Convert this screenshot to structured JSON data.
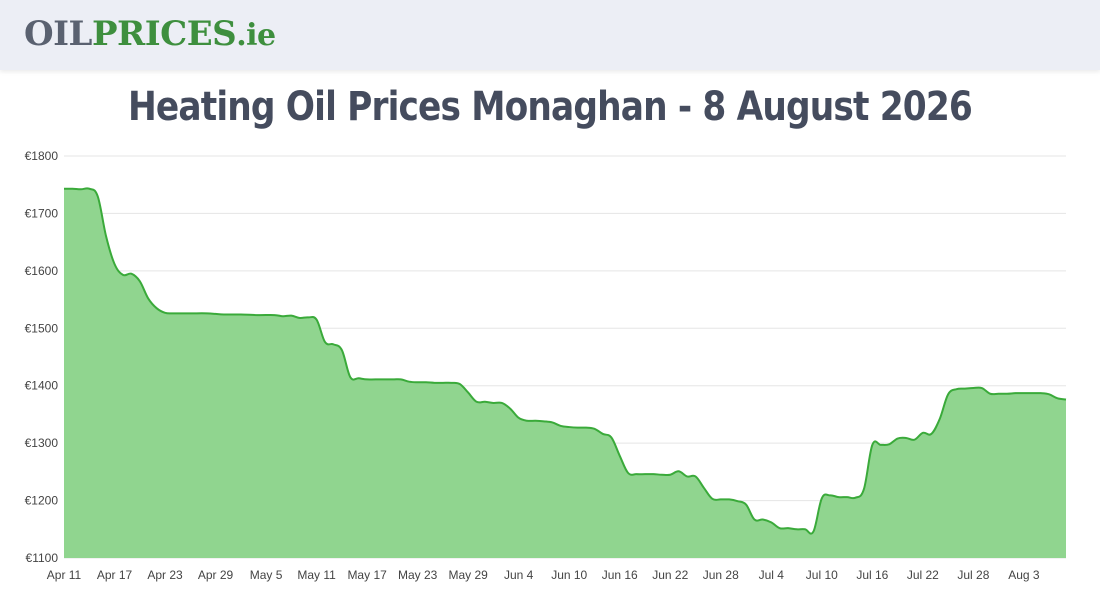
{
  "header": {
    "logo_oil": "OIL",
    "logo_prices": "PRICES",
    "logo_tld": ".ie"
  },
  "page_title": "Heating Oil Prices Monaghan - 8 August 2026",
  "colors": {
    "area_fill": "#90d58f",
    "line": "#3aaa3a",
    "grid": "#e5e5e5",
    "topbar": "#eceef5",
    "title": "#454c5e"
  },
  "chart_data": {
    "type": "area",
    "title": "",
    "xlabel": "",
    "ylabel": "",
    "ylim": [
      1100,
      1800
    ],
    "y_ticks": [
      "€1100",
      "€1200",
      "€1300",
      "€1400",
      "€1500",
      "€1600",
      "€1700",
      "€1800"
    ],
    "y_tick_values": [
      1100,
      1200,
      1300,
      1400,
      1500,
      1600,
      1700,
      1800
    ],
    "x_ticks": [
      "Apr 11",
      "Apr 17",
      "Apr 23",
      "Apr 29",
      "May 5",
      "May 11",
      "May 17",
      "May 23",
      "May 29",
      "Jun 4",
      "Jun 10",
      "Jun 16",
      "Jun 22",
      "Jun 28",
      "Jul 4",
      "Jul 10",
      "Jul 16",
      "Jul 22",
      "Jul 28",
      "Aug 3"
    ],
    "x_start": "2026-04-11",
    "x_end": "2026-08-08",
    "grid": true,
    "legend": "none",
    "series": [
      {
        "dates": [
          "2026-04-11",
          "2026-04-12",
          "2026-04-13",
          "2026-04-14",
          "2026-04-15",
          "2026-04-16",
          "2026-04-17",
          "2026-04-18",
          "2026-04-19",
          "2026-04-20",
          "2026-04-21",
          "2026-04-22",
          "2026-04-23",
          "2026-04-24",
          "2026-04-26",
          "2026-04-28",
          "2026-04-29",
          "2026-04-30",
          "2026-05-02",
          "2026-05-04",
          "2026-05-06",
          "2026-05-07",
          "2026-05-08",
          "2026-05-09",
          "2026-05-10",
          "2026-05-11",
          "2026-05-12",
          "2026-05-13",
          "2026-05-14",
          "2026-05-15",
          "2026-05-16",
          "2026-05-17",
          "2026-05-18",
          "2026-05-20",
          "2026-05-21",
          "2026-05-22",
          "2026-05-23",
          "2026-05-24",
          "2026-05-25",
          "2026-05-26",
          "2026-05-27",
          "2026-05-28",
          "2026-05-29",
          "2026-05-30",
          "2026-05-31",
          "2026-06-01",
          "2026-06-02",
          "2026-06-03",
          "2026-06-04",
          "2026-06-05",
          "2026-06-06",
          "2026-06-07",
          "2026-06-08",
          "2026-06-09",
          "2026-06-10",
          "2026-06-11",
          "2026-06-12",
          "2026-06-13",
          "2026-06-14",
          "2026-06-15",
          "2026-06-16",
          "2026-06-17",
          "2026-06-18",
          "2026-06-19",
          "2026-06-20",
          "2026-06-21",
          "2026-06-22",
          "2026-06-23",
          "2026-06-24",
          "2026-06-25",
          "2026-06-26",
          "2026-06-27",
          "2026-06-28",
          "2026-06-29",
          "2026-06-30",
          "2026-07-01",
          "2026-07-02",
          "2026-07-03",
          "2026-07-04",
          "2026-07-05",
          "2026-07-06",
          "2026-07-07",
          "2026-07-08",
          "2026-07-09",
          "2026-07-10",
          "2026-07-11",
          "2026-07-12",
          "2026-07-13",
          "2026-07-14",
          "2026-07-15",
          "2026-07-16",
          "2026-07-17",
          "2026-07-18",
          "2026-07-19",
          "2026-07-20",
          "2026-07-21",
          "2026-07-22",
          "2026-07-23",
          "2026-07-24",
          "2026-07-25",
          "2026-07-26",
          "2026-07-27",
          "2026-07-28",
          "2026-07-29",
          "2026-07-30",
          "2026-07-31",
          "2026-08-01",
          "2026-08-02",
          "2026-08-03",
          "2026-08-04",
          "2026-08-05",
          "2026-08-06",
          "2026-08-07",
          "2026-08-08"
        ],
        "values": [
          1743,
          1743,
          1742,
          1743,
          1730,
          1660,
          1612,
          1593,
          1595,
          1582,
          1552,
          1535,
          1527,
          1526,
          1526,
          1526,
          1525,
          1524,
          1524,
          1523,
          1523,
          1521,
          1522,
          1518,
          1519,
          1515,
          1476,
          1472,
          1462,
          1415,
          1413,
          1411,
          1411,
          1411,
          1411,
          1407,
          1406,
          1406,
          1405,
          1405,
          1405,
          1403,
          1388,
          1372,
          1372,
          1370,
          1370,
          1360,
          1344,
          1339,
          1339,
          1338,
          1336,
          1330,
          1328,
          1327,
          1327,
          1325,
          1316,
          1310,
          1278,
          1248,
          1246,
          1246,
          1246,
          1245,
          1245,
          1251,
          1242,
          1242,
          1222,
          1203,
          1202,
          1202,
          1199,
          1193,
          1167,
          1167,
          1162,
          1152,
          1152,
          1150,
          1150,
          1146,
          1204,
          1209,
          1206,
          1206,
          1205,
          1220,
          1297,
          1297,
          1298,
          1308,
          1309,
          1306,
          1318,
          1316,
          1342,
          1385,
          1394,
          1395,
          1396,
          1396,
          1386,
          1386,
          1386,
          1387,
          1387,
          1387,
          1387,
          1385,
          1378,
          1376
        ]
      }
    ]
  }
}
